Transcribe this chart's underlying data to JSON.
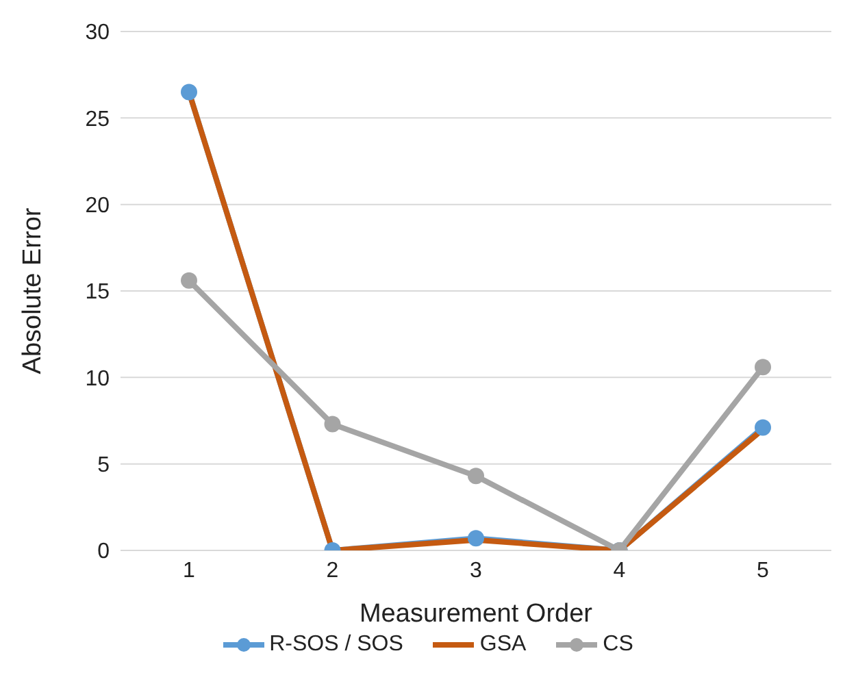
{
  "chart_data": {
    "type": "line",
    "xlabel": "Measurement Order",
    "ylabel": "Absolute Error",
    "categories": [
      "1",
      "2",
      "3",
      "4",
      "5"
    ],
    "series": [
      {
        "name": "R-SOS / SOS",
        "color": "#5b9bd5",
        "marker": "circle",
        "values": [
          26.5,
          0,
          0.7,
          0,
          7.1
        ]
      },
      {
        "name": "GSA",
        "color": "#c55a11",
        "marker": "none",
        "values": [
          26.5,
          0,
          0.6,
          0,
          7.0
        ]
      },
      {
        "name": "CS",
        "color": "#a5a5a5",
        "marker": "circle",
        "values": [
          15.6,
          7.3,
          4.3,
          0,
          10.6
        ]
      }
    ],
    "ylim": [
      0,
      30
    ],
    "yticks": [
      0,
      5,
      10,
      15,
      20,
      25,
      30
    ],
    "grid": "y",
    "legend": "bottom"
  }
}
